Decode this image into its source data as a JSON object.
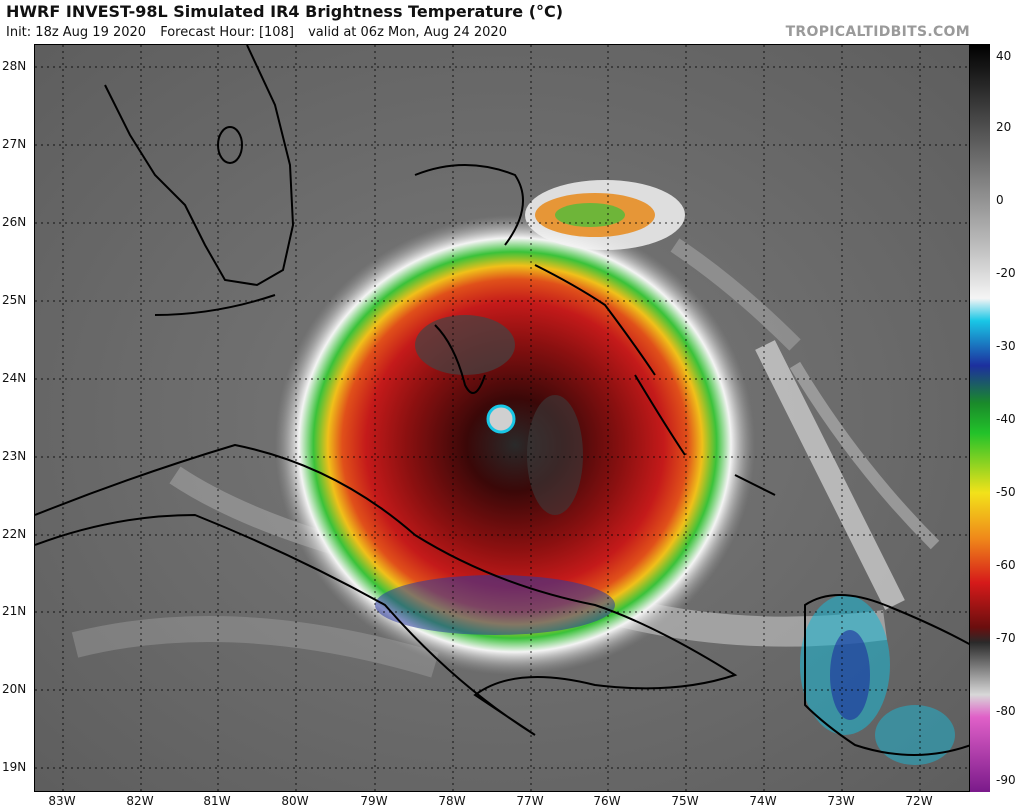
{
  "header": {
    "title": "HWRF INVEST-98L Simulated IR4 Brightness Temperature (°C)",
    "init": "Init: 18z Aug 19 2020",
    "forecast_hour": "Forecast Hour: [108]",
    "valid": "valid at 06z Mon, Aug 24 2020",
    "source": "TROPICALTIDBITS.COM"
  },
  "map": {
    "lat_labels": [
      "28N",
      "27N",
      "26N",
      "25N",
      "24N",
      "23N",
      "22N",
      "21N",
      "20N",
      "19N"
    ],
    "lon_labels": [
      "83W",
      "82W",
      "81W",
      "80W",
      "79W",
      "78W",
      "77W",
      "76W",
      "75W",
      "74W",
      "73W",
      "72W"
    ]
  },
  "colorbar": {
    "tick_labels": [
      "40",
      "20",
      "0",
      "-20",
      "-30",
      "-40",
      "-50",
      "-60",
      "-70",
      "-80",
      "-90"
    ],
    "colors": {
      "warm": "#000000",
      "mid_gray": "#9a9a9a",
      "cloud_white": "#f5f5f5",
      "cyan": "#19c7e6",
      "blue": "#1c2f9e",
      "green": "#22c22a",
      "yellow": "#f2e21a",
      "orange": "#f08a1a",
      "red": "#d61a1a",
      "dark_red": "#6a0e0e",
      "pink": "#e060c8",
      "purple": "#7a1a8a"
    }
  },
  "storm": {
    "eye_color": "#cfcfcf"
  },
  "theme": {
    "land_line": "#000000",
    "background_gray": "#6e6e6e"
  }
}
